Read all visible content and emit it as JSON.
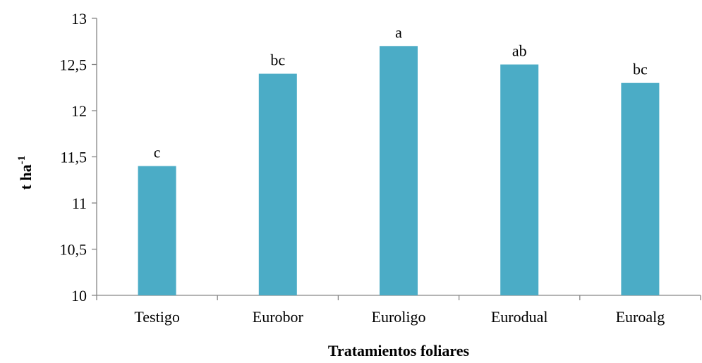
{
  "chart_data": {
    "type": "bar",
    "categories": [
      "Testigo",
      "Eurobor",
      "Euroligo",
      "Eurodual",
      "Euroalg"
    ],
    "values": [
      11.4,
      12.4,
      12.7,
      12.5,
      12.3
    ],
    "data_labels": [
      "c",
      "bc",
      "a",
      "ab",
      "bc"
    ],
    "title": "",
    "xlabel": "Tratamientos foliares",
    "ylabel_main": "t ha",
    "ylabel_superscript": "-1",
    "ylim": [
      10,
      13
    ],
    "yticks": [
      10,
      10.5,
      11,
      11.5,
      12,
      12.5,
      13
    ],
    "ytick_labels": [
      "10",
      "10,5",
      "11",
      "11,5",
      "12",
      "12,5",
      "13"
    ],
    "grid": false,
    "legend": "none",
    "bar_color": "#4bacc6"
  }
}
